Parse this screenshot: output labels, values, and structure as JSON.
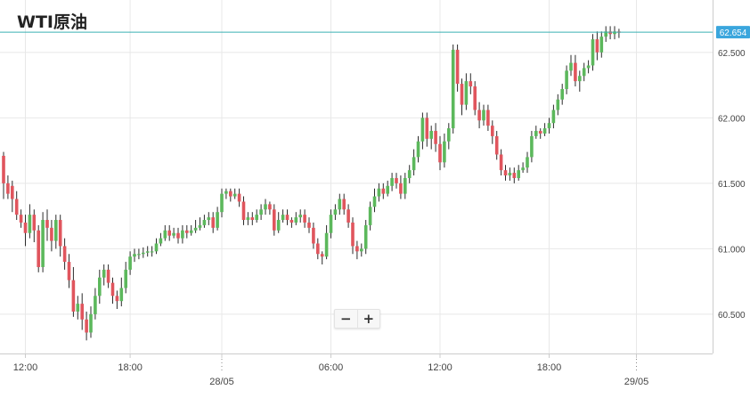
{
  "title": "WTI原油",
  "zoom": {
    "minus": "−",
    "plus": "+"
  },
  "colors": {
    "up": "#5cb85c",
    "down": "#e0555d",
    "wick": "#2b2b2b",
    "grid": "#e8e8e8",
    "axis": "#cccccc",
    "price_line": "#3ab0b3",
    "label_bg": "#3aa6dd",
    "axis_text": "#444444"
  },
  "chart_data": {
    "type": "candlestick",
    "title": "WTI原油",
    "ylim": [
      60.2,
      62.9
    ],
    "y_ticks": [
      "62.500",
      "62.000",
      "61.500",
      "61.000",
      "60.500"
    ],
    "current_price": "62.654",
    "x_ticks": [
      {
        "label": "12:00",
        "i": 5
      },
      {
        "label": "18:00",
        "i": 29
      },
      {
        "label": "28/05",
        "i": 50,
        "date": true
      },
      {
        "label": "06:00",
        "i": 75
      },
      {
        "label": "12:00",
        "i": 100
      },
      {
        "label": "18:00",
        "i": 125
      },
      {
        "label": "29/05",
        "i": 145,
        "date": true
      }
    ],
    "candles": [
      [
        61.71,
        61.5,
        61.74,
        61.38
      ],
      [
        61.5,
        61.42,
        61.56,
        61.38
      ],
      [
        61.48,
        61.38,
        61.52,
        61.28
      ],
      [
        61.38,
        61.26,
        61.44,
        61.22
      ],
      [
        61.26,
        61.2,
        61.3,
        61.16
      ],
      [
        61.2,
        61.12,
        61.26,
        61.02
      ],
      [
        61.12,
        61.26,
        61.34,
        61.08
      ],
      [
        61.26,
        61.14,
        61.3,
        61.05
      ],
      [
        61.14,
        60.86,
        61.18,
        60.82
      ],
      [
        60.86,
        61.22,
        61.28,
        60.82
      ],
      [
        61.22,
        61.16,
        61.3,
        61.06
      ],
      [
        61.16,
        61.06,
        61.22,
        60.98
      ],
      [
        61.06,
        61.22,
        61.26,
        61.0
      ],
      [
        61.22,
        61.02,
        61.26,
        60.94
      ],
      [
        61.02,
        60.9,
        61.08,
        60.84
      ],
      [
        60.9,
        60.76,
        60.96,
        60.7
      ],
      [
        60.76,
        60.52,
        60.86,
        60.48
      ],
      [
        60.52,
        60.58,
        60.64,
        60.46
      ],
      [
        60.58,
        60.46,
        60.66,
        60.38
      ],
      [
        60.46,
        60.36,
        60.52,
        60.3
      ],
      [
        60.36,
        60.5,
        60.56,
        60.32
      ],
      [
        60.5,
        60.64,
        60.7,
        60.46
      ],
      [
        60.64,
        60.78,
        60.84,
        60.58
      ],
      [
        60.78,
        60.84,
        60.88,
        60.72
      ],
      [
        60.84,
        60.74,
        60.88,
        60.7
      ],
      [
        60.74,
        60.64,
        60.78,
        60.58
      ],
      [
        60.64,
        60.6,
        60.68,
        60.54
      ],
      [
        60.6,
        60.7,
        60.78,
        60.56
      ],
      [
        60.7,
        60.84,
        60.9,
        60.66
      ],
      [
        60.84,
        60.94,
        60.98,
        60.8
      ],
      [
        60.94,
        60.96,
        61.0,
        60.9
      ],
      [
        60.96,
        60.96,
        61.0,
        60.92
      ],
      [
        60.96,
        60.97,
        61.01,
        60.93
      ],
      [
        60.97,
        60.98,
        61.02,
        60.94
      ],
      [
        60.98,
        60.98,
        61.02,
        60.94
      ],
      [
        60.98,
        61.04,
        61.08,
        60.96
      ],
      [
        61.04,
        61.08,
        61.12,
        61.02
      ],
      [
        61.08,
        61.14,
        61.18,
        61.06
      ],
      [
        61.14,
        61.1,
        61.18,
        61.06
      ],
      [
        61.1,
        61.12,
        61.16,
        61.08
      ],
      [
        61.12,
        61.08,
        61.16,
        61.04
      ],
      [
        61.08,
        61.14,
        61.18,
        61.04
      ],
      [
        61.14,
        61.12,
        61.18,
        61.08
      ],
      [
        61.12,
        61.14,
        61.18,
        61.1
      ],
      [
        61.14,
        61.16,
        61.22,
        61.12
      ],
      [
        61.16,
        61.18,
        61.24,
        61.14
      ],
      [
        61.18,
        61.22,
        61.26,
        61.16
      ],
      [
        61.22,
        61.24,
        61.28,
        61.18
      ],
      [
        61.24,
        61.16,
        61.28,
        61.12
      ],
      [
        61.16,
        61.28,
        61.32,
        61.14
      ],
      [
        61.28,
        61.42,
        61.46,
        61.24
      ],
      [
        61.42,
        61.44,
        61.46,
        61.38
      ],
      [
        61.44,
        61.4,
        61.46,
        61.36
      ],
      [
        61.4,
        61.42,
        61.46,
        61.38
      ],
      [
        61.42,
        61.36,
        61.46,
        61.32
      ],
      [
        61.36,
        61.22,
        61.4,
        61.18
      ],
      [
        61.22,
        61.24,
        61.28,
        61.18
      ],
      [
        61.24,
        61.22,
        61.28,
        61.18
      ],
      [
        61.22,
        61.26,
        61.3,
        61.2
      ],
      [
        61.26,
        61.3,
        61.34,
        61.22
      ],
      [
        61.3,
        61.34,
        61.38,
        61.26
      ],
      [
        61.34,
        61.3,
        61.36,
        61.26
      ],
      [
        61.3,
        61.14,
        61.34,
        61.1
      ],
      [
        61.14,
        61.22,
        61.28,
        61.12
      ],
      [
        61.22,
        61.26,
        61.3,
        61.2
      ],
      [
        61.26,
        61.22,
        61.3,
        61.18
      ],
      [
        61.22,
        61.2,
        61.24,
        61.16
      ],
      [
        61.2,
        61.24,
        61.28,
        61.18
      ],
      [
        61.24,
        61.26,
        61.3,
        61.2
      ],
      [
        61.26,
        61.2,
        61.3,
        61.16
      ],
      [
        61.2,
        61.16,
        61.24,
        61.12
      ],
      [
        61.16,
        61.04,
        61.2,
        61.0
      ],
      [
        61.04,
        60.96,
        61.08,
        60.92
      ],
      [
        60.96,
        60.94,
        60.98,
        60.88
      ],
      [
        60.94,
        61.12,
        61.18,
        60.92
      ],
      [
        61.12,
        61.26,
        61.3,
        61.08
      ],
      [
        61.26,
        61.3,
        61.34,
        61.22
      ],
      [
        61.3,
        61.38,
        61.42,
        61.26
      ],
      [
        61.38,
        61.3,
        61.42,
        61.26
      ],
      [
        61.3,
        61.2,
        61.34,
        61.16
      ],
      [
        61.2,
        61.02,
        61.24,
        60.96
      ],
      [
        61.02,
        60.98,
        61.06,
        60.92
      ],
      [
        60.98,
        61.0,
        61.04,
        60.94
      ],
      [
        61.0,
        61.18,
        61.22,
        60.96
      ],
      [
        61.18,
        61.32,
        61.36,
        61.14
      ],
      [
        61.32,
        61.4,
        61.46,
        61.28
      ],
      [
        61.4,
        61.46,
        61.5,
        61.36
      ],
      [
        61.46,
        61.42,
        61.5,
        61.38
      ],
      [
        61.42,
        61.48,
        61.52,
        61.4
      ],
      [
        61.48,
        61.54,
        61.58,
        61.44
      ],
      [
        61.54,
        61.5,
        61.58,
        61.46
      ],
      [
        61.5,
        61.42,
        61.56,
        61.38
      ],
      [
        61.42,
        61.54,
        61.58,
        61.38
      ],
      [
        61.54,
        61.6,
        61.64,
        61.5
      ],
      [
        61.6,
        61.7,
        61.76,
        61.56
      ],
      [
        61.7,
        61.82,
        61.86,
        61.66
      ],
      [
        61.82,
        62.0,
        62.04,
        61.76
      ],
      [
        62.0,
        61.84,
        62.04,
        61.78
      ],
      [
        61.84,
        61.9,
        61.94,
        61.76
      ],
      [
        61.9,
        61.8,
        61.96,
        61.74
      ],
      [
        61.8,
        61.66,
        61.86,
        61.6
      ],
      [
        61.66,
        61.82,
        61.88,
        61.62
      ],
      [
        61.82,
        61.92,
        61.96,
        61.76
      ],
      [
        61.92,
        62.52,
        62.56,
        61.88
      ],
      [
        62.52,
        62.26,
        62.56,
        62.2
      ],
      [
        62.26,
        62.1,
        62.3,
        62.02
      ],
      [
        62.1,
        62.28,
        62.34,
        62.06
      ],
      [
        62.28,
        62.24,
        62.34,
        62.18
      ],
      [
        62.24,
        62.06,
        62.28,
        62.02
      ],
      [
        62.06,
        61.98,
        62.12,
        61.92
      ],
      [
        61.98,
        62.06,
        62.1,
        61.94
      ],
      [
        62.06,
        61.94,
        62.1,
        61.9
      ],
      [
        61.94,
        61.86,
        61.98,
        61.8
      ],
      [
        61.86,
        61.72,
        61.9,
        61.68
      ],
      [
        61.72,
        61.6,
        61.76,
        61.56
      ],
      [
        61.6,
        61.56,
        61.64,
        61.52
      ],
      [
        61.56,
        61.58,
        61.62,
        61.52
      ],
      [
        61.58,
        61.54,
        61.62,
        61.5
      ],
      [
        61.54,
        61.6,
        61.64,
        61.52
      ],
      [
        61.6,
        61.62,
        61.66,
        61.58
      ],
      [
        61.62,
        61.7,
        61.74,
        61.58
      ],
      [
        61.7,
        61.86,
        61.9,
        61.66
      ],
      [
        61.86,
        61.9,
        61.94,
        61.84
      ],
      [
        61.9,
        61.88,
        61.92,
        61.84
      ],
      [
        61.88,
        61.92,
        61.96,
        61.86
      ],
      [
        61.92,
        61.96,
        62.0,
        61.88
      ],
      [
        61.96,
        62.06,
        62.1,
        61.92
      ],
      [
        62.06,
        62.14,
        62.18,
        62.02
      ],
      [
        62.14,
        62.22,
        62.26,
        62.1
      ],
      [
        62.22,
        62.36,
        62.4,
        62.18
      ],
      [
        62.36,
        62.42,
        62.48,
        62.32
      ],
      [
        62.42,
        62.28,
        62.48,
        62.24
      ],
      [
        62.28,
        62.32,
        62.36,
        62.2
      ],
      [
        62.32,
        62.38,
        62.42,
        62.28
      ],
      [
        62.38,
        62.4,
        62.44,
        62.34
      ],
      [
        62.4,
        62.6,
        62.64,
        62.36
      ],
      [
        62.6,
        62.5,
        62.66,
        62.44
      ],
      [
        62.5,
        62.62,
        62.66,
        62.46
      ],
      [
        62.62,
        62.66,
        62.7,
        62.58
      ],
      [
        62.66,
        62.64,
        62.7,
        62.6
      ],
      [
        62.64,
        62.66,
        62.7,
        62.6
      ],
      [
        62.66,
        62.65,
        62.68,
        62.61
      ]
    ]
  }
}
